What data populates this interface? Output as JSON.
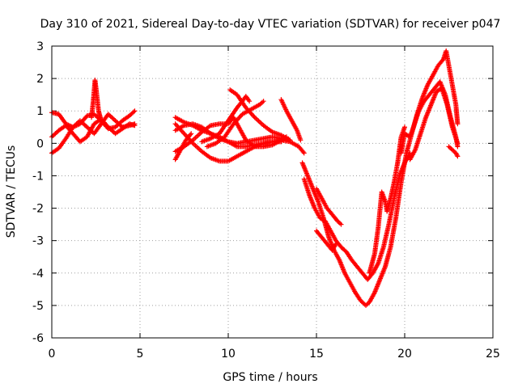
{
  "chart_data": {
    "type": "scatter",
    "title": "Day 310 of 2021, Sidereal Day-to-day VTEC variation (SDTVAR) for receiver p047",
    "xlabel": "GPS time / hours",
    "ylabel": "SDTVAR / TECUs",
    "xlim": [
      0,
      25
    ],
    "ylim": [
      -6,
      3
    ],
    "xticks": [
      0,
      5,
      10,
      15,
      20,
      25
    ],
    "yticks": [
      -6,
      -5,
      -4,
      -3,
      -2,
      -1,
      0,
      1,
      2,
      3
    ],
    "grid": true,
    "marker": "+",
    "series": [
      {
        "name": "SDTVAR",
        "color": "#ff0000",
        "tracks": [
          [
            [
              0,
              0.95
            ],
            [
              0.4,
              0.9
            ],
            [
              0.8,
              0.6
            ],
            [
              1.2,
              0.5
            ],
            [
              1.6,
              0.6
            ],
            [
              2.0,
              0.85
            ],
            [
              2.4,
              0.9
            ],
            [
              2.8,
              0.7
            ],
            [
              3.2,
              0.45
            ],
            [
              3.6,
              0.5
            ],
            [
              4.0,
              0.7
            ],
            [
              4.4,
              0.85
            ],
            [
              4.7,
              1.0
            ]
          ],
          [
            [
              0,
              0.2
            ],
            [
              0.4,
              0.4
            ],
            [
              0.8,
              0.55
            ],
            [
              1.2,
              0.3
            ],
            [
              1.6,
              0.05
            ],
            [
              2.0,
              0.2
            ],
            [
              2.4,
              0.6
            ],
            [
              2.8,
              0.75
            ],
            [
              3.2,
              0.5
            ],
            [
              3.6,
              0.3
            ],
            [
              4.0,
              0.45
            ],
            [
              4.4,
              0.6
            ],
            [
              4.7,
              0.55
            ]
          ],
          [
            [
              0,
              -0.3
            ],
            [
              0.4,
              -0.15
            ],
            [
              0.8,
              0.15
            ],
            [
              1.2,
              0.5
            ],
            [
              1.6,
              0.7
            ],
            [
              2.0,
              0.5
            ],
            [
              2.4,
              0.3
            ],
            [
              2.8,
              0.6
            ],
            [
              3.2,
              0.9
            ],
            [
              3.6,
              0.7
            ],
            [
              4.0,
              0.5
            ],
            [
              4.4,
              0.55
            ],
            [
              4.7,
              0.6
            ]
          ],
          [
            [
              2.25,
              0.8
            ],
            [
              2.35,
              1.3
            ],
            [
              2.45,
              1.95
            ],
            [
              2.55,
              1.5
            ],
            [
              2.65,
              1.0
            ],
            [
              2.75,
              0.8
            ]
          ],
          [
            [
              7.0,
              0.8
            ],
            [
              7.5,
              0.65
            ],
            [
              8.0,
              0.55
            ],
            [
              8.5,
              0.4
            ],
            [
              9.0,
              0.3
            ],
            [
              9.5,
              0.2
            ],
            [
              10.0,
              0.05
            ],
            [
              10.5,
              -0.1
            ],
            [
              11.0,
              -0.1
            ],
            [
              11.5,
              -0.05
            ],
            [
              12.0,
              0.0
            ],
            [
              12.5,
              0.05
            ],
            [
              13.0,
              0.1
            ],
            [
              13.5,
              0.05
            ],
            [
              14.0,
              -0.1
            ],
            [
              14.3,
              -0.3
            ]
          ],
          [
            [
              7.0,
              0.4
            ],
            [
              7.5,
              0.55
            ],
            [
              8.0,
              0.6
            ],
            [
              8.5,
              0.5
            ],
            [
              9.0,
              0.3
            ],
            [
              9.5,
              0.15
            ],
            [
              10.0,
              0.05
            ],
            [
              10.5,
              0.0
            ],
            [
              11.0,
              0.05
            ],
            [
              11.5,
              0.1
            ],
            [
              12.0,
              0.15
            ],
            [
              12.5,
              0.2
            ],
            [
              13.0,
              0.15
            ],
            [
              13.5,
              0.1
            ]
          ],
          [
            [
              7.0,
              -0.25
            ],
            [
              7.5,
              -0.1
            ],
            [
              8.0,
              0.1
            ],
            [
              8.5,
              0.35
            ],
            [
              9.0,
              0.55
            ],
            [
              9.5,
              0.6
            ],
            [
              10.0,
              0.6
            ],
            [
              10.3,
              0.8
            ],
            [
              10.6,
              0.5
            ],
            [
              11.0,
              0.1
            ],
            [
              11.5,
              -0.1
            ],
            [
              12.0,
              -0.1
            ],
            [
              12.5,
              -0.05
            ],
            [
              13.0,
              0.1
            ],
            [
              13.3,
              0.2
            ]
          ],
          [
            [
              7.0,
              0.6
            ],
            [
              7.5,
              0.3
            ],
            [
              8.0,
              0.0
            ],
            [
              8.5,
              -0.25
            ],
            [
              9.0,
              -0.45
            ],
            [
              9.5,
              -0.55
            ],
            [
              10.0,
              -0.55
            ],
            [
              10.5,
              -0.4
            ],
            [
              11.0,
              -0.25
            ],
            [
              11.5,
              -0.1
            ],
            [
              12.0,
              0.0
            ],
            [
              12.5,
              0.05
            ],
            [
              13.0,
              0.05
            ]
          ],
          [
            [
              8.8,
              -0.1
            ],
            [
              9.3,
              0.0
            ],
            [
              9.8,
              0.2
            ],
            [
              10.3,
              0.6
            ],
            [
              10.8,
              0.9
            ],
            [
              11.3,
              1.05
            ],
            [
              11.8,
              1.2
            ],
            [
              12.0,
              1.3
            ]
          ],
          [
            [
              8.5,
              0.05
            ],
            [
              9.0,
              0.15
            ],
            [
              9.5,
              0.3
            ],
            [
              10.0,
              0.7
            ],
            [
              10.5,
              1.1
            ],
            [
              10.8,
              1.3
            ],
            [
              11.0,
              1.45
            ],
            [
              11.2,
              1.3
            ]
          ],
          [
            [
              10.1,
              1.65
            ],
            [
              10.5,
              1.5
            ],
            [
              11.0,
              1.1
            ],
            [
              11.5,
              0.8
            ],
            [
              12.0,
              0.55
            ],
            [
              12.5,
              0.35
            ],
            [
              13.0,
              0.25
            ],
            [
              13.5,
              0.1
            ]
          ],
          [
            [
              13.0,
              1.35
            ],
            [
              13.3,
              1.0
            ],
            [
              13.6,
              0.7
            ],
            [
              13.9,
              0.4
            ],
            [
              14.1,
              0.1
            ]
          ],
          [
            [
              14.2,
              -0.6
            ],
            [
              14.5,
              -1.0
            ],
            [
              14.8,
              -1.4
            ],
            [
              15.1,
              -1.8
            ],
            [
              15.4,
              -2.3
            ],
            [
              15.7,
              -2.9
            ],
            [
              16.0,
              -3.3
            ],
            [
              16.3,
              -3.6
            ],
            [
              16.6,
              -4.0
            ],
            [
              16.9,
              -4.3
            ],
            [
              17.2,
              -4.6
            ],
            [
              17.5,
              -4.85
            ],
            [
              17.8,
              -5.0
            ],
            [
              18.0,
              -4.9
            ],
            [
              18.3,
              -4.6
            ],
            [
              18.6,
              -4.2
            ],
            [
              18.9,
              -3.8
            ],
            [
              19.2,
              -3.2
            ],
            [
              19.5,
              -2.3
            ],
            [
              19.8,
              -1.2
            ],
            [
              20.1,
              -0.3
            ],
            [
              20.4,
              0.3
            ],
            [
              20.7,
              0.9
            ],
            [
              21.0,
              1.4
            ],
            [
              21.3,
              1.8
            ],
            [
              21.6,
              2.1
            ],
            [
              21.9,
              2.4
            ],
            [
              22.2,
              2.6
            ],
            [
              22.35,
              2.85
            ],
            [
              22.6,
              2.1
            ],
            [
              22.9,
              1.2
            ],
            [
              23.0,
              0.6
            ]
          ],
          [
            [
              14.3,
              -1.1
            ],
            [
              14.6,
              -1.6
            ],
            [
              14.9,
              -2.0
            ],
            [
              15.2,
              -2.3
            ],
            [
              15.5,
              -2.4
            ],
            [
              15.8,
              -2.7
            ],
            [
              16.1,
              -3.0
            ],
            [
              16.4,
              -3.2
            ],
            [
              16.7,
              -3.35
            ],
            [
              17.0,
              -3.6
            ],
            [
              17.3,
              -3.8
            ],
            [
              17.6,
              -4.0
            ],
            [
              17.9,
              -4.2
            ],
            [
              18.2,
              -4.0
            ],
            [
              18.5,
              -3.7
            ],
            [
              18.8,
              -3.2
            ],
            [
              19.1,
              -2.5
            ],
            [
              19.4,
              -1.7
            ],
            [
              19.7,
              -1.0
            ],
            [
              20.0,
              -0.6
            ],
            [
              20.3,
              -0.3
            ]
          ],
          [
            [
              15.0,
              -1.4
            ],
            [
              15.3,
              -1.7
            ],
            [
              15.6,
              -2.0
            ],
            [
              15.9,
              -2.2
            ],
            [
              16.2,
              -2.4
            ],
            [
              16.4,
              -2.5
            ]
          ],
          [
            [
              15.0,
              -2.7
            ],
            [
              15.3,
              -2.9
            ],
            [
              15.6,
              -3.1
            ],
            [
              15.9,
              -3.3
            ],
            [
              16.1,
              -3.1
            ]
          ],
          [
            [
              18.0,
              -4.0
            ],
            [
              18.3,
              -3.4
            ],
            [
              18.5,
              -2.6
            ],
            [
              18.7,
              -1.5
            ],
            [
              18.9,
              -1.8
            ],
            [
              19.0,
              -2.1
            ],
            [
              19.2,
              -1.7
            ],
            [
              19.4,
              -1.2
            ],
            [
              19.6,
              -0.6
            ],
            [
              19.8,
              0.2
            ],
            [
              20.0,
              0.5
            ]
          ],
          [
            [
              19.8,
              -0.3
            ],
            [
              20.0,
              0.3
            ],
            [
              20.3,
              0.2
            ],
            [
              20.5,
              0.5
            ],
            [
              20.8,
              1.0
            ],
            [
              21.1,
              1.3
            ],
            [
              21.4,
              1.5
            ],
            [
              21.7,
              1.7
            ],
            [
              22.0,
              1.9
            ],
            [
              22.3,
              1.5
            ],
            [
              22.6,
              0.8
            ],
            [
              22.9,
              0.2
            ],
            [
              23.0,
              -0.1
            ]
          ],
          [
            [
              20.3,
              -0.5
            ],
            [
              20.6,
              -0.2
            ],
            [
              20.9,
              0.3
            ],
            [
              21.2,
              0.8
            ],
            [
              21.5,
              1.2
            ],
            [
              21.8,
              1.6
            ],
            [
              22.1,
              1.7
            ],
            [
              22.4,
              1.2
            ],
            [
              22.7,
              0.5
            ],
            [
              23.0,
              0.0
            ]
          ],
          [
            [
              22.5,
              -0.1
            ],
            [
              22.7,
              -0.2
            ],
            [
              22.9,
              -0.3
            ],
            [
              23.0,
              -0.4
            ]
          ],
          [
            [
              7.0,
              -0.5
            ],
            [
              7.3,
              -0.2
            ],
            [
              7.6,
              0.1
            ],
            [
              7.9,
              0.3
            ]
          ]
        ]
      }
    ]
  }
}
